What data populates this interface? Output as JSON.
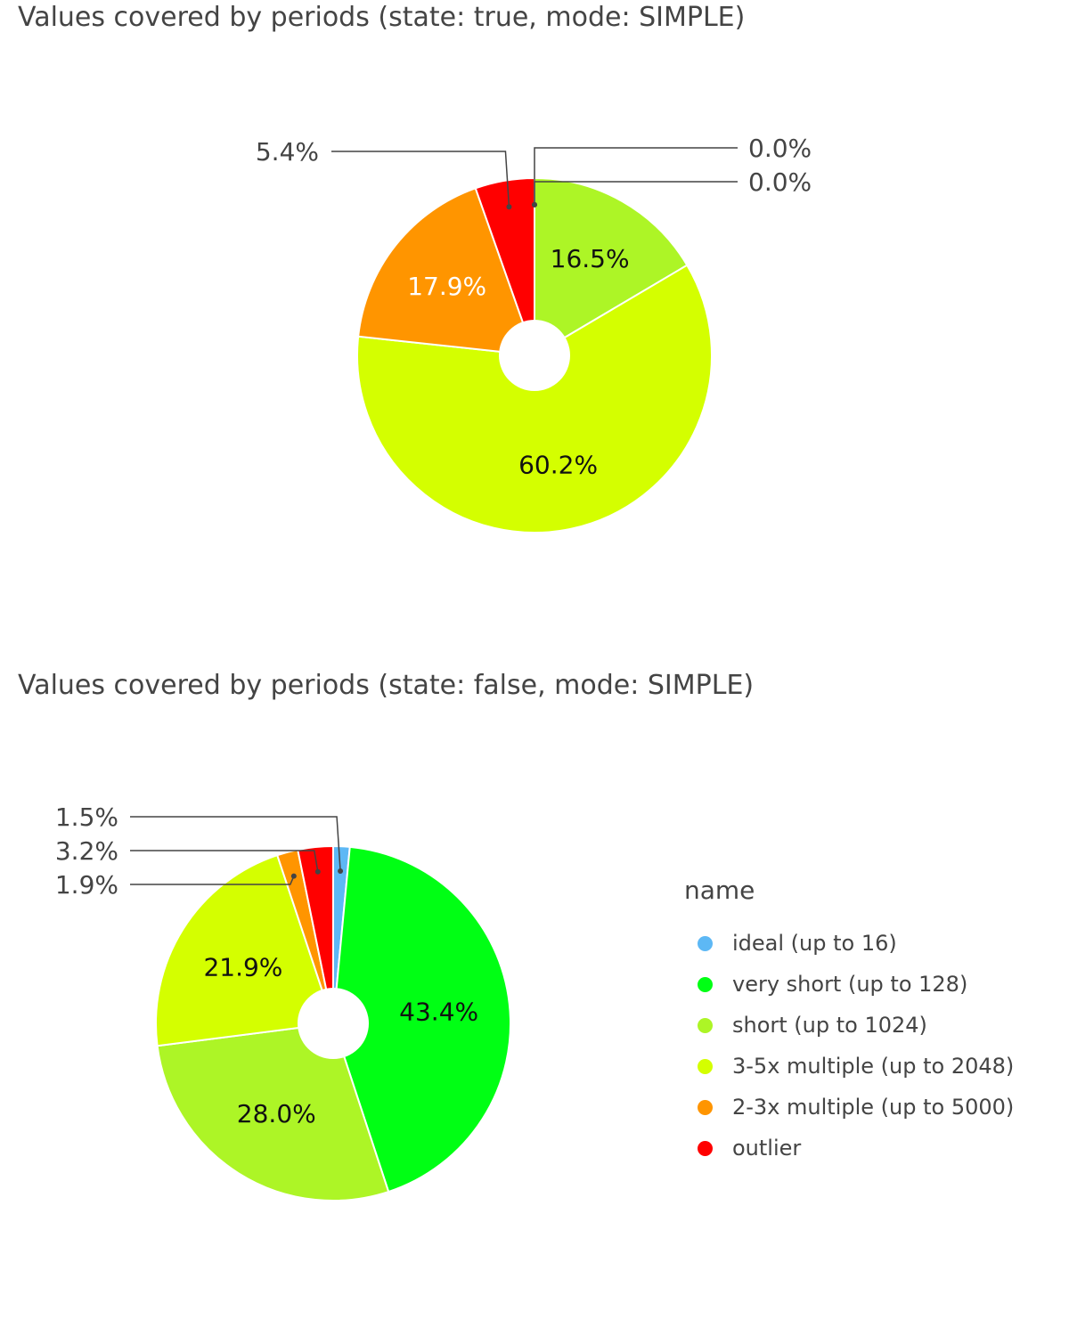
{
  "chart_data": [
    {
      "type": "pie",
      "hole": true,
      "title": "Values covered by periods (state: true, mode: SIMPLE)",
      "slices": [
        {
          "name": "ideal (up to 16)",
          "value": 0.0,
          "label": "0.0%",
          "color": "#5db8f5"
        },
        {
          "name": "very short (up to 128)",
          "value": 0.0,
          "label": "0.0%",
          "color": "#00ff14"
        },
        {
          "name": "short (up to 1024)",
          "value": 16.5,
          "label": "16.5%",
          "color": "#adf526"
        },
        {
          "name": "3-5x multiple (up to 2048)",
          "value": 60.2,
          "label": "60.2%",
          "color": "#d4ff00"
        },
        {
          "name": "2-3x multiple (up to 5000)",
          "value": 17.9,
          "label": "17.9%",
          "color": "#ff9500"
        },
        {
          "name": "outlier",
          "value": 5.4,
          "label": "5.4%",
          "color": "#ff0000"
        }
      ]
    },
    {
      "type": "pie",
      "hole": true,
      "title": "Values covered by periods (state: false, mode: SIMPLE)",
      "slices": [
        {
          "name": "ideal (up to 16)",
          "value": 1.5,
          "label": "1.5%",
          "color": "#5db8f5"
        },
        {
          "name": "very short (up to 128)",
          "value": 43.4,
          "label": "43.4%",
          "color": "#00ff14"
        },
        {
          "name": "short (up to 1024)",
          "value": 28.0,
          "label": "28.0%",
          "color": "#adf526"
        },
        {
          "name": "3-5x multiple (up to 2048)",
          "value": 21.9,
          "label": "21.9%",
          "color": "#d4ff00"
        },
        {
          "name": "2-3x multiple (up to 5000)",
          "value": 1.9,
          "label": "1.9%",
          "color": "#ff9500"
        },
        {
          "name": "outlier",
          "value": 3.2,
          "label": "3.2%",
          "color": "#ff0000"
        }
      ]
    }
  ],
  "legend": {
    "title": "name",
    "items": [
      {
        "label": "ideal (up to 16)",
        "color": "#5db8f5"
      },
      {
        "label": "very short (up to 128)",
        "color": "#00ff14"
      },
      {
        "label": "short (up to 1024)",
        "color": "#adf526"
      },
      {
        "label": "3-5x multiple (up to 2048)",
        "color": "#d4ff00"
      },
      {
        "label": "2-3x multiple (up to 5000)",
        "color": "#ff9500"
      },
      {
        "label": "outlier",
        "color": "#ff0000"
      }
    ]
  }
}
